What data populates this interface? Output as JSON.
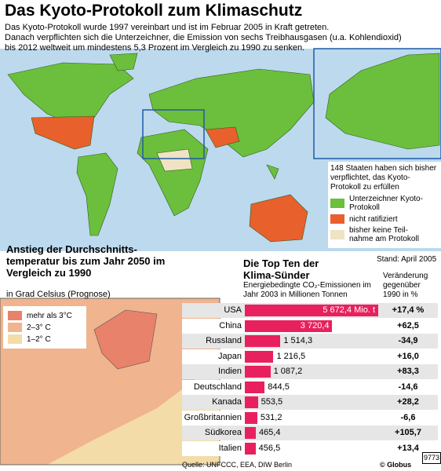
{
  "header": {
    "title": "Das Kyoto-Protokoll zum Klimaschutz",
    "intro": [
      "Das Kyoto-Protokoll wurde 1997 vereinbart und ist im Februar 2005 in Kraft getreten.",
      "Danach verpflichten sich die Unterzeichner, die Emission von sechs Treibhausgasen (u.a. Kohlendioxid)",
      "bis 2012 weltweit um mindestens 5,3 Prozent im Vergleich zu 1990 zu senken."
    ]
  },
  "world_map": {
    "legend_title": "148 Staaten haben sich bisher verpflichtet, das Kyoto-Protokoll zu erfüllen",
    "legend": [
      {
        "label": "Unterzeichner Kyoto-Protokoll",
        "color": "#6cbf3c"
      },
      {
        "label": "nicht ratifiziert",
        "color": "#e8602c"
      },
      {
        "label": "bisher keine Teil-nahme am Protokoll",
        "color": "#efe3c4"
      }
    ],
    "stand": "Stand: April 2005"
  },
  "temperature_map": {
    "title": "Anstieg der Durchschnitts-temperatur bis zum Jahr 2050 im Vergleich zu 1990",
    "subtitle": "in Grad Celsius (Prognose)",
    "legend": [
      {
        "label": "mehr als 3°C",
        "color": "#e9826a"
      },
      {
        "label": "2–3° C",
        "color": "#f0b48e"
      },
      {
        "label": "1–2° C",
        "color": "#f4dca8"
      }
    ]
  },
  "chart_data": {
    "type": "bar",
    "title": "Die Top Ten der Klima-Sünder",
    "subtitle": "Energiebedingte CO₂-Emissionen im Jahr 2003 in Millionen Tonnen",
    "change_header": "Veränderung gegenüber 1990 in %",
    "categories": [
      "USA",
      "China",
      "Russland",
      "Japan",
      "Indien",
      "Deutschland",
      "Kanada",
      "Großbritannien",
      "Südkorea",
      "Italien"
    ],
    "values": [
      5672.4,
      3720.4,
      1514.3,
      1216.5,
      1087.2,
      844.5,
      553.5,
      531.2,
      465.4,
      456.5
    ],
    "value_labels": [
      "5 672,4 Mio. t",
      "3 720,4",
      "1 514,3",
      "1 216,5",
      "1 087,2",
      "844,5",
      "553,5",
      "531,2",
      "465,4",
      "456,5"
    ],
    "changes": [
      "+17,4 %",
      "+62,5",
      "-34,9",
      "+16,0",
      "+83,3",
      "-14,6",
      "+28,2",
      "-6,6",
      "+105,7",
      "+13,4"
    ],
    "color": "#e8215e"
  },
  "footer": {
    "source": "Quelle: UNFCCC, EEA, DIW Berlin",
    "agency": "© Globus",
    "number": "9773"
  }
}
